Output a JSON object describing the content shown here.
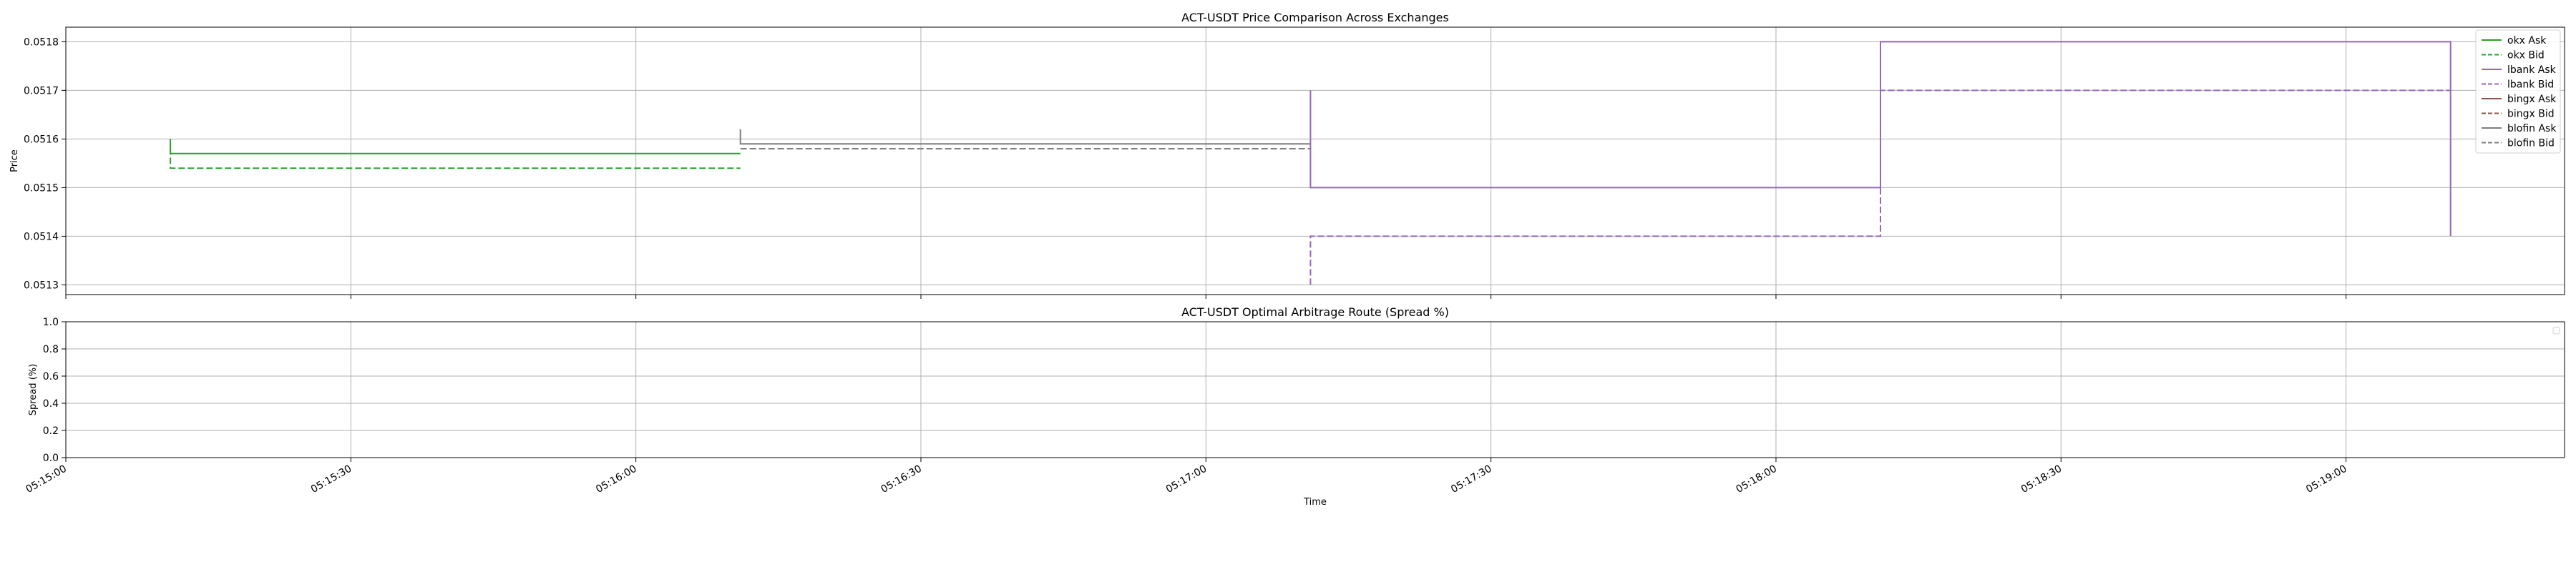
{
  "chart_data": [
    {
      "type": "line",
      "title": "ACT-USDT Price Comparison Across Exchanges",
      "xlabel": "",
      "ylabel": "Price",
      "ylim": [
        0.05128,
        0.05183
      ],
      "yticks": [
        0.0513,
        0.0514,
        0.0515,
        0.0516,
        0.0517,
        0.0518
      ],
      "ytick_labels": [
        "0.0513",
        "0.0514",
        "0.0515",
        "0.0516",
        "0.0517",
        "0.0518"
      ],
      "xlim": [
        "05:15:00",
        "05:19:23"
      ],
      "grid": true,
      "legend_position": "top-right",
      "series": [
        {
          "name": "okx Ask",
          "color": "#2ca02c",
          "dash": "solid",
          "x": [
            "05:15:11",
            "05:15:11",
            "05:16:11"
          ],
          "y": [
            0.05159,
            0.05157,
            0.05157
          ]
        },
        {
          "name": "okx Bid",
          "color": "#2ca02c",
          "dash": "dashed",
          "x": [
            "05:15:11",
            "05:15:11",
            "05:16:11"
          ],
          "y": [
            0.0516,
            0.05154,
            0.05154
          ]
        },
        {
          "name": "lbank Ask",
          "color": "#9467bd",
          "dash": "solid",
          "x": [
            "05:17:11",
            "05:17:11",
            "05:18:11",
            "05:18:11",
            "05:19:11",
            "05:19:11"
          ],
          "y": [
            0.0517,
            0.0515,
            0.0515,
            0.0518,
            0.0518,
            0.0514
          ]
        },
        {
          "name": "lbank Bid",
          "color": "#9467bd",
          "dash": "dashed",
          "x": [
            "05:17:11",
            "05:17:11",
            "05:18:11",
            "05:18:11",
            "05:19:11"
          ],
          "y": [
            0.0513,
            0.0514,
            0.0514,
            0.0517,
            0.0517
          ]
        },
        {
          "name": "bingx Ask",
          "color": "#8c564b",
          "dash": "solid",
          "x": [],
          "y": []
        },
        {
          "name": "bingx Bid",
          "color": "#8c564b",
          "dash": "dashed",
          "x": [],
          "y": []
        },
        {
          "name": "blofin Ask",
          "color": "#7f7f7f",
          "dash": "solid",
          "x": [
            "05:16:11",
            "05:16:11",
            "05:17:11"
          ],
          "y": [
            0.05162,
            0.05159,
            0.05159
          ]
        },
        {
          "name": "blofin Bid",
          "color": "#7f7f7f",
          "dash": "dashed",
          "x": [
            "05:16:11",
            "05:16:11",
            "05:17:11"
          ],
          "y": [
            0.05158,
            0.05158,
            0.05158
          ]
        }
      ]
    },
    {
      "type": "line",
      "title": "ACT-USDT Optimal Arbitrage Route (Spread %)",
      "xlabel": "Time",
      "ylabel": "Spread (%)",
      "ylim": [
        0.0,
        1.0
      ],
      "yticks": [
        0.0,
        0.2,
        0.4,
        0.6,
        0.8,
        1.0
      ],
      "ytick_labels": [
        "0.0",
        "0.2",
        "0.4",
        "0.6",
        "0.8",
        "1.0"
      ],
      "xlim": [
        "05:15:00",
        "05:19:23"
      ],
      "xticks": [
        "05:15:00",
        "05:15:30",
        "05:16:00",
        "05:16:30",
        "05:17:00",
        "05:17:30",
        "05:18:00",
        "05:18:30",
        "05:19:00"
      ],
      "grid": true,
      "legend_position": "top-right",
      "series": []
    }
  ]
}
